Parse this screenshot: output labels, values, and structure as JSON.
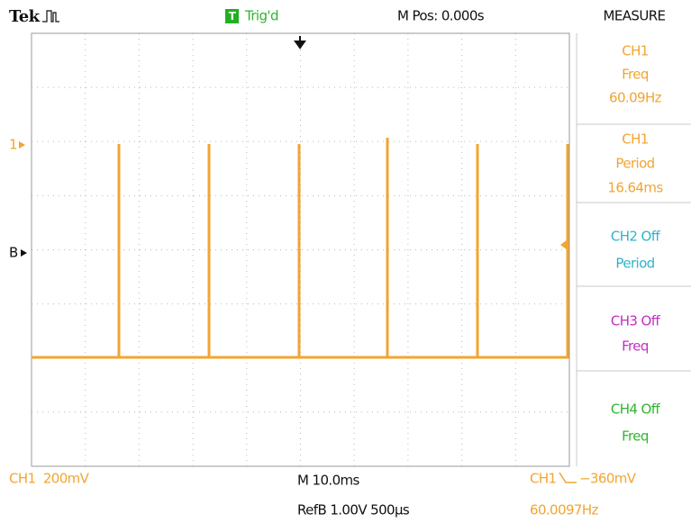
{
  "header": {
    "brand": "Tek",
    "trigger_badge": "T",
    "trigger_status": "Trig'd",
    "position": "M Pos: 0.000s",
    "menu_title": "MEASURE"
  },
  "measurements": [
    {
      "source": "CH1",
      "type": "Freq",
      "value": "60.09Hz"
    },
    {
      "source": "CH1",
      "type": "Period",
      "value": "16.64ms"
    },
    {
      "source": "CH2 Off",
      "type": "Period"
    },
    {
      "source": "CH3 Off",
      "type": "Freq"
    },
    {
      "source": "CH4 Off",
      "type": "Freq"
    }
  ],
  "markers": {
    "channel": "1",
    "reference": "B"
  },
  "footer": {
    "channel_scale": "CH1  200mV",
    "timebase": "M 10.0ms",
    "trigger_source": "CH1",
    "trigger_level": "−360mV",
    "reference": "RefB 1.00V 500μs",
    "frequency": "60.0097Hz"
  }
}
